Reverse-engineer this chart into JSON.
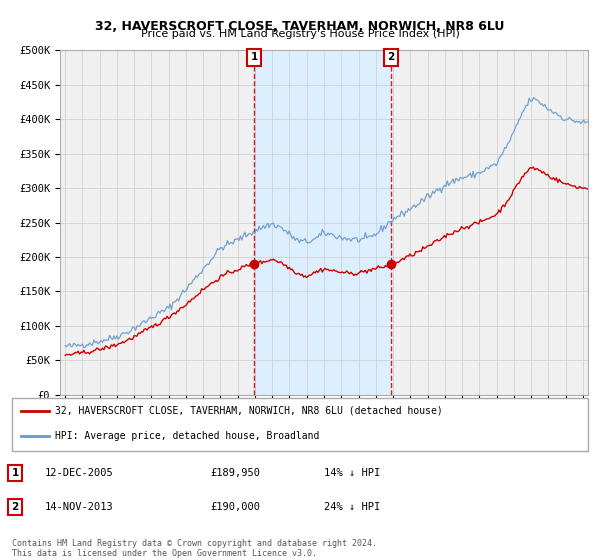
{
  "title": "32, HAVERSCROFT CLOSE, TAVERHAM, NORWICH, NR8 6LU",
  "subtitle": "Price paid vs. HM Land Registry's House Price Index (HPI)",
  "ylabel_ticks": [
    "£0",
    "£50K",
    "£100K",
    "£150K",
    "£200K",
    "£250K",
    "£300K",
    "£350K",
    "£400K",
    "£450K",
    "£500K"
  ],
  "ytick_values": [
    0,
    50000,
    100000,
    150000,
    200000,
    250000,
    300000,
    350000,
    400000,
    450000,
    500000
  ],
  "xlim_years": [
    1994.7,
    2025.3
  ],
  "ylim": [
    0,
    500000
  ],
  "sale1": {
    "date_str": "12-DEC-2005",
    "price": 189950,
    "year": 2005.95,
    "label": "1",
    "pct": "14% ↓ HPI"
  },
  "sale2": {
    "date_str": "14-NOV-2013",
    "price": 190000,
    "year": 2013.87,
    "label": "2",
    "pct": "24% ↓ HPI"
  },
  "legend_house_label": "32, HAVERSCROFT CLOSE, TAVERHAM, NORWICH, NR8 6LU (detached house)",
  "legend_hpi_label": "HPI: Average price, detached house, Broadland",
  "footer": "Contains HM Land Registry data © Crown copyright and database right 2024.\nThis data is licensed under the Open Government Licence v3.0.",
  "house_color": "#cc0000",
  "hpi_color": "#6699cc",
  "annotation_box_color": "#cc0000",
  "vline_color": "#cc0000",
  "highlight_bg": "#ddeeff",
  "grid_color": "#cccccc",
  "background_color": "#f0f0f0"
}
